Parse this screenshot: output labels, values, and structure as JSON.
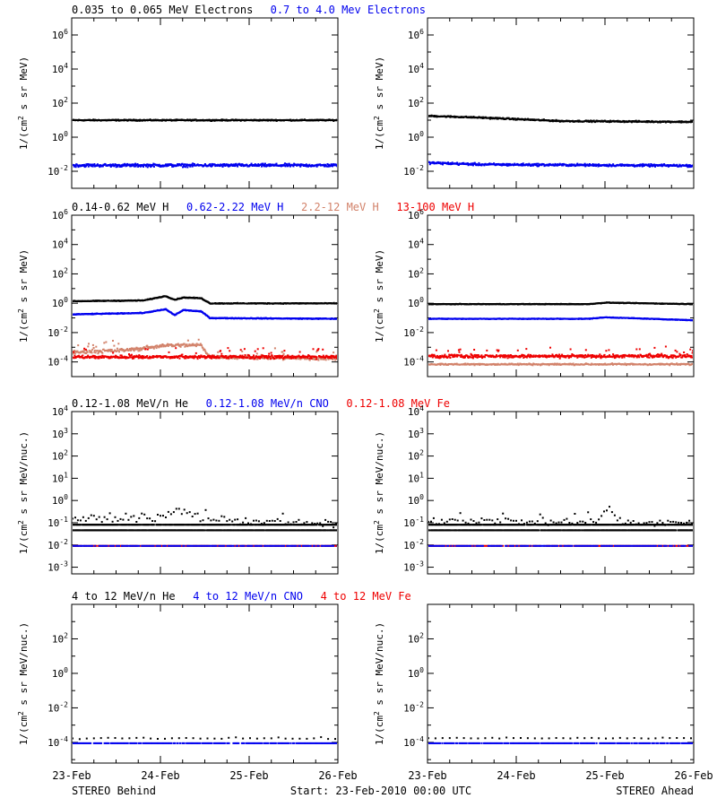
{
  "colors": {
    "black": "#000000",
    "blue": "#0000ee",
    "tan": "#d2826a",
    "red": "#ee0000"
  },
  "chart_data": [
    {
      "type": "scatter",
      "id": "electrons",
      "legend": [
        {
          "text": "0.035 to 0.065 MeV Electrons",
          "color": "#000000"
        },
        {
          "text": "0.7 to 4.0 Mev Electrons",
          "color": "#0000ee"
        }
      ],
      "ylabel": "1/(cm2 s sr MeV)",
      "yscale": "log",
      "ylim_exp": [
        -3,
        7
      ],
      "yticks": [
        {
          "exp": -2,
          "label": "10-2"
        },
        {
          "exp": 0,
          "label": "100"
        },
        {
          "exp": 2,
          "label": "102"
        },
        {
          "exp": 4,
          "label": "104"
        },
        {
          "exp": 6,
          "label": "106"
        }
      ],
      "panels": [
        {
          "spacecraft": "STEREO Behind",
          "series": [
            {
              "color": "#000000",
              "levels": [
                [
                  0,
                  1.05
                ],
                [
                  3,
                  1.05
                ]
              ],
              "noise": 0.05,
              "step": 0.006
            },
            {
              "color": "#0000ee",
              "levels": [
                [
                  0,
                  -1.6
                ],
                [
                  3,
                  -1.6
                ]
              ],
              "noise": 0.13,
              "step": 0.006
            }
          ]
        },
        {
          "spacecraft": "STEREO Ahead",
          "series": [
            {
              "color": "#000000",
              "levels": [
                [
                  0,
                  1.3
                ],
                [
                  0.6,
                  1.2
                ],
                [
                  1.5,
                  1.0
                ],
                [
                  3,
                  0.95
                ]
              ],
              "noise": 0.06,
              "step": 0.006
            },
            {
              "color": "#0000ee",
              "levels": [
                [
                  0,
                  -1.45
                ],
                [
                  0.6,
                  -1.55
                ],
                [
                  3,
                  -1.62
                ]
              ],
              "noise": 0.1,
              "step": 0.006
            }
          ]
        }
      ]
    },
    {
      "type": "scatter",
      "id": "protons",
      "legend": [
        {
          "text": "0.14-0.62 MeV H",
          "color": "#000000"
        },
        {
          "text": "0.62-2.22 MeV H",
          "color": "#0000ee"
        },
        {
          "text": "2.2-12 MeV H",
          "color": "#d2826a"
        },
        {
          "text": "13-100 MeV H",
          "color": "#ee0000"
        }
      ],
      "ylabel": "1/(cm2 s sr MeV)",
      "yscale": "log",
      "ylim_exp": [
        -5,
        6
      ],
      "yticks": [
        {
          "exp": -4,
          "label": "10-4"
        },
        {
          "exp": -2,
          "label": "10-2"
        },
        {
          "exp": 0,
          "label": "100"
        },
        {
          "exp": 2,
          "label": "102"
        },
        {
          "exp": 4,
          "label": "104"
        },
        {
          "exp": 6,
          "label": "106"
        }
      ],
      "panels": [
        {
          "spacecraft": "STEREO Behind",
          "series": [
            {
              "color": "#000000",
              "levels": [
                [
                  0,
                  0.2
                ],
                [
                  0.8,
                  0.25
                ],
                [
                  1.05,
                  0.55
                ],
                [
                  1.15,
                  0.3
                ],
                [
                  1.25,
                  0.45
                ],
                [
                  1.45,
                  0.4
                ],
                [
                  1.55,
                  0.05
                ],
                [
                  3,
                  0.05
                ]
              ],
              "noise": 0.04,
              "step": 0.006
            },
            {
              "color": "#0000ee",
              "levels": [
                [
                  0,
                  -0.7
                ],
                [
                  0.8,
                  -0.6
                ],
                [
                  1.05,
                  -0.35
                ],
                [
                  1.15,
                  -0.75
                ],
                [
                  1.25,
                  -0.4
                ],
                [
                  1.45,
                  -0.5
                ],
                [
                  1.55,
                  -0.95
                ],
                [
                  3,
                  -1.0
                ]
              ],
              "noise": 0.04,
              "step": 0.006
            },
            {
              "color": "#d2826a",
              "levels": [
                [
                  0,
                  -3.3
                ],
                [
                  0.7,
                  -3.1
                ],
                [
                  1.05,
                  -2.8
                ],
                [
                  1.45,
                  -2.8
                ],
                [
                  1.55,
                  -3.6
                ],
                [
                  3,
                  -3.7
                ]
              ],
              "noise": 0.18,
              "step": 0.007
            },
            {
              "color": "#ee0000",
              "levels": [
                [
                  0,
                  -3.6
                ],
                [
                  3,
                  -3.6
                ]
              ],
              "noise": 0.16,
              "step": 0.006
            }
          ]
        },
        {
          "spacecraft": "STEREO Ahead",
          "series": [
            {
              "color": "#000000",
              "levels": [
                [
                  0,
                  0.0
                ],
                [
                  1.8,
                  0.0
                ],
                [
                  2.0,
                  0.1
                ],
                [
                  3,
                  0.0
                ]
              ],
              "noise": 0.03,
              "step": 0.006
            },
            {
              "color": "#0000ee",
              "levels": [
                [
                  0,
                  -1.0
                ],
                [
                  1.8,
                  -1.0
                ],
                [
                  2.0,
                  -0.9
                ],
                [
                  3,
                  -1.1
                ]
              ],
              "noise": 0.03,
              "step": 0.006
            },
            {
              "color": "#d2826a",
              "levels": [
                [
                  0,
                  -4.1
                ],
                [
                  3,
                  -4.1
                ]
              ],
              "noise": 0.08,
              "step": 0.008
            },
            {
              "color": "#ee0000",
              "levels": [
                [
                  0,
                  -3.55
                ],
                [
                  3,
                  -3.55
                ]
              ],
              "noise": 0.16,
              "step": 0.006
            }
          ]
        }
      ]
    },
    {
      "type": "scatter",
      "id": "heavy-low",
      "legend": [
        {
          "text": "0.12-1.08 MeV/n He",
          "color": "#000000"
        },
        {
          "text": "0.12-1.08 MeV/n CNO",
          "color": "#0000ee"
        },
        {
          "text": "0.12-1.08 MeV Fe",
          "color": "#ee0000"
        }
      ],
      "ylabel": "1/(cm2 s sr MeV/nuc.)",
      "yscale": "log",
      "ylim_exp": [
        -3.3,
        4
      ],
      "yticks": [
        {
          "exp": -3,
          "label": "10-3"
        },
        {
          "exp": -2,
          "label": "10-2"
        },
        {
          "exp": -1,
          "label": "10-1"
        },
        {
          "exp": 0,
          "label": "100"
        },
        {
          "exp": 1,
          "label": "101"
        },
        {
          "exp": 2,
          "label": "102"
        },
        {
          "exp": 3,
          "label": "103"
        },
        {
          "exp": 4,
          "label": "104"
        }
      ],
      "panels": [
        {
          "spacecraft": "STEREO Behind",
          "series": [
            {
              "color": "#000000",
              "levels": [
                [
                  0,
                  -1.05
                ],
                [
                  3,
                  -1.05
                ]
              ],
              "noise": 0.0,
              "step": 0.006,
              "dashed": true
            },
            {
              "color": "#000000",
              "levels": [
                [
                  0,
                  -1.3
                ],
                [
                  3,
                  -1.3
                ]
              ],
              "noise": 0.0,
              "step": 0.006,
              "dashed": true
            },
            {
              "color": "#000000",
              "levels": [
                [
                  0,
                  -0.8
                ],
                [
                  1.0,
                  -0.7
                ],
                [
                  1.2,
                  -0.4
                ],
                [
                  1.5,
                  -0.8
                ],
                [
                  3,
                  -1.05
                ]
              ],
              "noise": 0.25,
              "step": 0.03
            },
            {
              "color": "#ee0000",
              "levels": [
                [
                  0,
                  -2.0
                ],
                [
                  3,
                  -2.0
                ]
              ],
              "noise": 0.0,
              "step": 0.01,
              "dashed": true
            },
            {
              "color": "#0000ee",
              "levels": [
                [
                  0,
                  -2.0
                ],
                [
                  3,
                  -2.0
                ]
              ],
              "noise": 0.0,
              "step": 0.015,
              "dashed": true
            }
          ]
        },
        {
          "spacecraft": "STEREO Ahead",
          "series": [
            {
              "color": "#000000",
              "levels": [
                [
                  0,
                  -1.05
                ],
                [
                  3,
                  -1.05
                ]
              ],
              "noise": 0.0,
              "step": 0.006,
              "dashed": true
            },
            {
              "color": "#000000",
              "levels": [
                [
                  0,
                  -1.3
                ],
                [
                  3,
                  -1.3
                ]
              ],
              "noise": 0.0,
              "step": 0.006,
              "dashed": true
            },
            {
              "color": "#000000",
              "levels": [
                [
                  0,
                  -0.9
                ],
                [
                  1.9,
                  -0.9
                ],
                [
                  2.0,
                  -0.3
                ],
                [
                  2.1,
                  -0.6
                ],
                [
                  2.2,
                  -0.95
                ],
                [
                  3,
                  -1.0
                ]
              ],
              "noise": 0.22,
              "step": 0.03
            },
            {
              "color": "#ee0000",
              "levels": [
                [
                  0,
                  -2.0
                ],
                [
                  3,
                  -2.0
                ]
              ],
              "noise": 0.0,
              "step": 0.012,
              "dashed": true
            },
            {
              "color": "#0000ee",
              "levels": [
                [
                  0,
                  -2.0
                ],
                [
                  3,
                  -2.0
                ]
              ],
              "noise": 0.0,
              "step": 0.015,
              "dashed": true
            }
          ]
        }
      ]
    },
    {
      "type": "scatter",
      "id": "heavy-high",
      "legend": [
        {
          "text": "4 to 12 MeV/n He",
          "color": "#000000"
        },
        {
          "text": "4 to 12 MeV/n CNO",
          "color": "#0000ee"
        },
        {
          "text": "4 to 12 MeV Fe",
          "color": "#ee0000"
        }
      ],
      "ylabel": "1/(cm2 s sr MeV/nuc.)",
      "yscale": "log",
      "ylim_exp": [
        -5.2,
        4
      ],
      "yticks": [
        {
          "exp": -4,
          "label": "10-4"
        },
        {
          "exp": -2,
          "label": "10-2"
        },
        {
          "exp": 0,
          "label": "100"
        },
        {
          "exp": 2,
          "label": "102"
        }
      ],
      "panels": [
        {
          "spacecraft": "STEREO Behind",
          "series": [
            {
              "color": "#0000ee",
              "levels": [
                [
                  0,
                  -4.0
                ],
                [
                  3,
                  -4.0
                ]
              ],
              "noise": 0.0,
              "step": 0.012,
              "dashed": true
            },
            {
              "color": "#000000",
              "levels": [
                [
                  0,
                  -3.7
                ],
                [
                  3,
                  -3.7
                ]
              ],
              "noise": 0.08,
              "step": 0.08
            }
          ]
        },
        {
          "spacecraft": "STEREO Ahead",
          "series": [
            {
              "color": "#0000ee",
              "levels": [
                [
                  0,
                  -4.0
                ],
                [
                  3,
                  -4.0
                ]
              ],
              "noise": 0.0,
              "step": 0.012,
              "dashed": true
            },
            {
              "color": "#000000",
              "levels": [
                [
                  0,
                  -3.7
                ],
                [
                  3,
                  -3.7
                ]
              ],
              "noise": 0.05,
              "step": 0.08
            }
          ]
        }
      ]
    }
  ],
  "x_axis": {
    "days_from_start": [
      0,
      1,
      2,
      3
    ],
    "tick_labels": [
      "23-Feb",
      "24-Feb",
      "25-Feb",
      "26-Feb"
    ]
  },
  "footer": {
    "left": "STEREO Behind",
    "center": "Start: 23-Feb-2010 00:00 UTC",
    "right": "STEREO Ahead"
  }
}
